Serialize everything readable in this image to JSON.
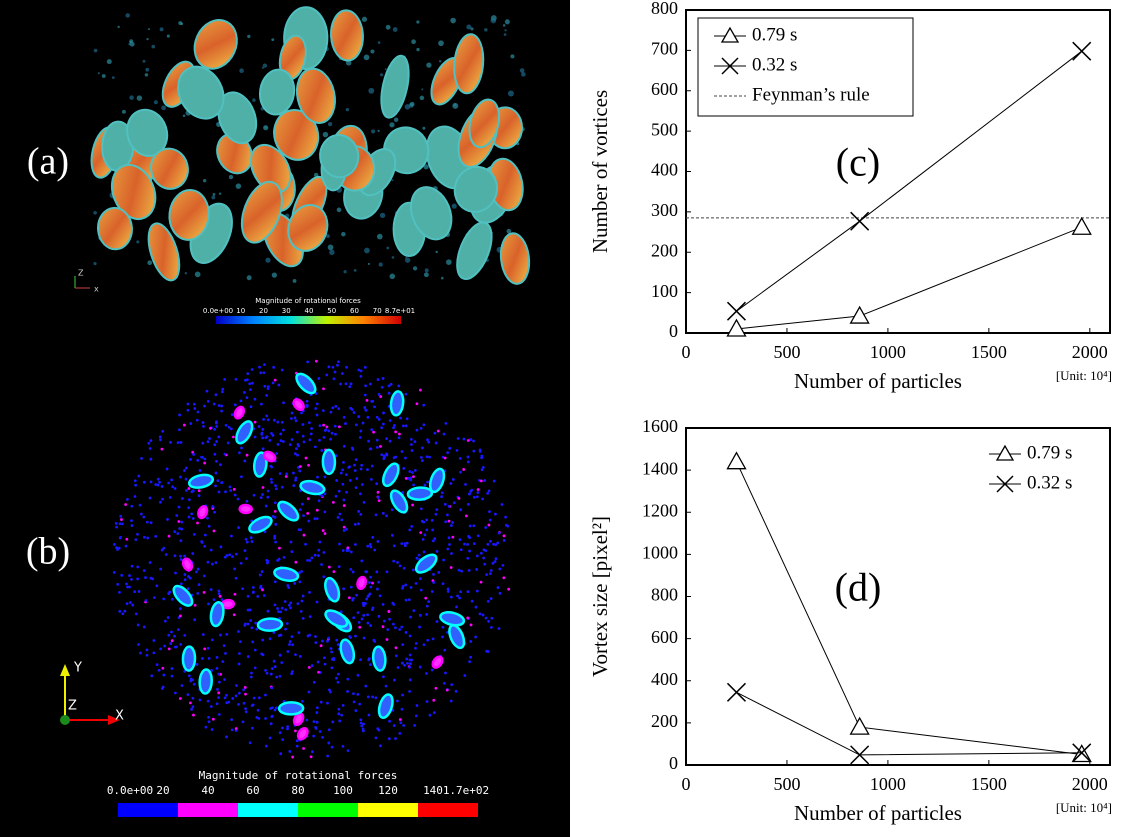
{
  "panels": {
    "a": {
      "label": "(a)",
      "colorbar_title": "Magnitude of rotational forces",
      "colorbar_ticks": [
        "0.0e+00",
        "10",
        "20",
        "30",
        "40",
        "50",
        "60",
        "70",
        "8.7e+01"
      ],
      "axes": [
        "Z",
        "x"
      ]
    },
    "b": {
      "label": "(b)",
      "colorbar_title": "Magnitude of rotational forces",
      "colorbar_ticks": [
        "0.0e+00",
        "20",
        "40",
        "60",
        "80",
        "100",
        "120",
        "140",
        "1.7e+02"
      ],
      "axes": [
        "Y",
        "Z",
        "X"
      ]
    }
  },
  "chart_data": [
    {
      "type": "line",
      "panel_label": "(c)",
      "xlabel": "Number of particles",
      "xunit": "[Unit: 10⁴]",
      "ylabel": "Number of vortices",
      "xlim": [
        0,
        2100
      ],
      "xticks": [
        0,
        500,
        1000,
        1500,
        2000
      ],
      "ylim": [
        0,
        800
      ],
      "yticks": [
        0,
        100,
        200,
        300,
        400,
        500,
        600,
        700,
        800
      ],
      "x": [
        250,
        860,
        1960
      ],
      "series": [
        {
          "name": "0.79 s",
          "color": "#000000",
          "marker": "triangle",
          "values": [
            10,
            42,
            262
          ]
        },
        {
          "name": "0.32 s",
          "color": "#000000",
          "marker": "cross",
          "values": [
            54,
            277,
            698
          ]
        }
      ],
      "hlines": [
        {
          "name": "Feynman’s rule",
          "value": 285,
          "style": "dashed"
        }
      ],
      "legend": "upper left",
      "legend_box": true
    },
    {
      "type": "line",
      "panel_label": "(d)",
      "xlabel": "Number of particles",
      "xunit": "[Unit: 10⁴]",
      "ylabel": "Vortex size [pixel²]",
      "xlim": [
        0,
        2100
      ],
      "xticks": [
        0,
        500,
        1000,
        1500,
        2000
      ],
      "ylim": [
        0,
        1600
      ],
      "yticks": [
        0,
        200,
        400,
        600,
        800,
        1000,
        1200,
        1400,
        1600
      ],
      "x": [
        250,
        860,
        1960
      ],
      "series": [
        {
          "name": "0.79 s",
          "color": "#000000",
          "marker": "triangle",
          "values": [
            1440,
            180,
            50
          ]
        },
        {
          "name": "0.32 s",
          "color": "#000000",
          "marker": "cross",
          "values": [
            345,
            48,
            58
          ]
        }
      ],
      "legend": "upper right",
      "legend_box": false
    }
  ]
}
